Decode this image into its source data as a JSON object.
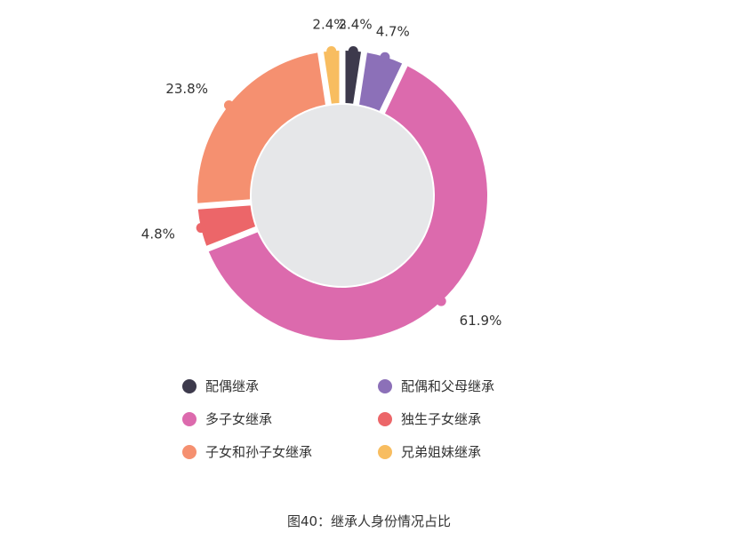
{
  "chart_data": {
    "type": "pie",
    "donut": true,
    "caption": "图40：继承人身份情况占比",
    "slices": [
      {
        "label": "配偶继承",
        "value": 2.4,
        "display": "2.4%",
        "color": "#3d3a4c"
      },
      {
        "label": "配偶和父母继承",
        "value": 4.7,
        "display": "4.7%",
        "color": "#8c70b8"
      },
      {
        "label": "多子女继承",
        "value": 61.9,
        "display": "61.9%",
        "color": "#dc6aad"
      },
      {
        "label": "独生子女继承",
        "value": 4.8,
        "display": "4.8%",
        "color": "#ec6669"
      },
      {
        "label": "子女和孙子女继承",
        "value": 23.8,
        "display": "23.8%",
        "color": "#f59070"
      },
      {
        "label": "兄弟姐妹继承",
        "value": 2.4,
        "display": "2.4%",
        "color": "#f8bd60"
      }
    ],
    "center_color": "#e6e7e9",
    "legend_position": "bottom"
  }
}
